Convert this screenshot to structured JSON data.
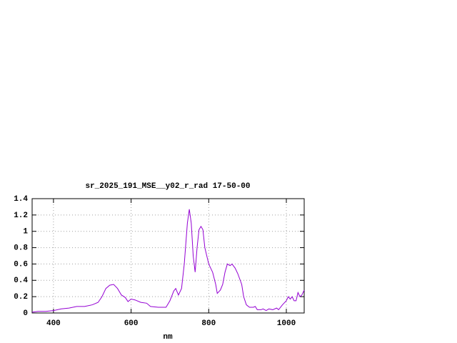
{
  "chart_data": {
    "type": "line",
    "title": "sr_2025_191_MSE__y02_r_rad 17-50-00",
    "x_label": "nm",
    "x": [
      345,
      360,
      380,
      400,
      420,
      440,
      460,
      480,
      500,
      515,
      525,
      535,
      545,
      555,
      565,
      575,
      585,
      592,
      600,
      610,
      625,
      640,
      650,
      670,
      690,
      700,
      710,
      715,
      722,
      730,
      737,
      745,
      750,
      755,
      760,
      765,
      770,
      775,
      780,
      785,
      790,
      800,
      810,
      818,
      822,
      830,
      836,
      842,
      848,
      855,
      860,
      868,
      875,
      885,
      890,
      897,
      905,
      915,
      920,
      925,
      935,
      940,
      948,
      955,
      965,
      975,
      980,
      990,
      1000,
      1005,
      1010,
      1015,
      1020,
      1025,
      1030,
      1035,
      1040,
      1046
    ],
    "series": [
      {
        "color": "#9400d3",
        "values": [
          0.01,
          0.02,
          0.02,
          0.03,
          0.05,
          0.06,
          0.08,
          0.08,
          0.1,
          0.13,
          0.2,
          0.3,
          0.34,
          0.35,
          0.3,
          0.22,
          0.19,
          0.14,
          0.17,
          0.16,
          0.13,
          0.12,
          0.08,
          0.07,
          0.07,
          0.15,
          0.27,
          0.3,
          0.22,
          0.3,
          0.6,
          1.1,
          1.27,
          1.1,
          0.7,
          0.5,
          0.8,
          1.02,
          1.06,
          1.02,
          0.8,
          0.6,
          0.5,
          0.35,
          0.24,
          0.28,
          0.35,
          0.5,
          0.6,
          0.58,
          0.6,
          0.55,
          0.48,
          0.35,
          0.2,
          0.1,
          0.07,
          0.07,
          0.08,
          0.04,
          0.04,
          0.05,
          0.03,
          0.05,
          0.04,
          0.06,
          0.04,
          0.1,
          0.15,
          0.2,
          0.17,
          0.2,
          0.15,
          0.15,
          0.25,
          0.2,
          0.22,
          0.28
        ]
      }
    ],
    "xlim": [
      345,
      1046
    ],
    "xticks": [
      400,
      600,
      800,
      1000
    ],
    "ylim": [
      0,
      1.4
    ],
    "yticks": [
      0,
      0.2,
      0.4,
      0.6,
      0.8,
      1,
      1.2,
      1.4
    ],
    "grid": true
  }
}
